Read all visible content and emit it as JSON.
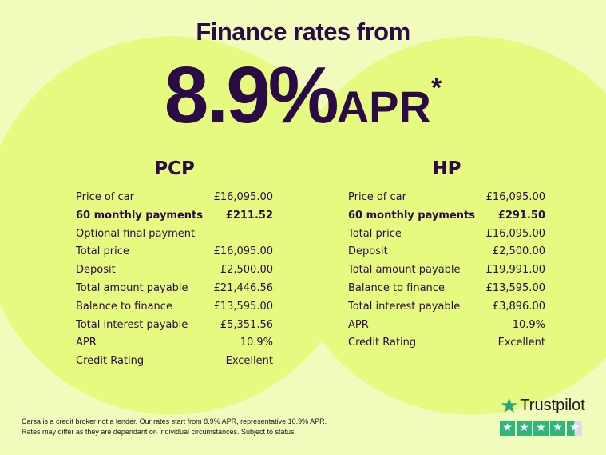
{
  "header": {
    "title": "Finance rates from",
    "rate": "8.9%",
    "apr": "APR",
    "asterisk": "*"
  },
  "pcp": {
    "title": "PCP",
    "rows": [
      {
        "label": "Price of car",
        "value": "£16,095.00"
      },
      {
        "label": "60 monthly payments",
        "value": "£211.52",
        "bold": true
      },
      {
        "label": "Optional final payment",
        "value": ""
      },
      {
        "label": "Total price",
        "value": "£16,095.00"
      },
      {
        "label": "Deposit",
        "value": "£2,500.00"
      },
      {
        "label": "Total amount payable",
        "value": "£21,446.56"
      },
      {
        "label": "Balance to finance",
        "value": "£13,595.00"
      },
      {
        "label": "Total interest payable",
        "value": "£5,351.56"
      },
      {
        "label": "APR",
        "value": "10.9%"
      },
      {
        "label": "Credit Rating",
        "value": "Excellent"
      }
    ]
  },
  "hp": {
    "title": "HP",
    "rows": [
      {
        "label": "Price of car",
        "value": "£16,095.00"
      },
      {
        "label": "60 monthly payments",
        "value": "£291.50",
        "bold": true
      },
      {
        "label": "Total price",
        "value": "£16,095.00"
      },
      {
        "label": "Deposit",
        "value": "£2,500.00"
      },
      {
        "label": "Total amount payable",
        "value": "£19,991.00"
      },
      {
        "label": "Balance to finance",
        "value": "£13,595.00"
      },
      {
        "label": "Total interest payable",
        "value": "£3,896.00"
      },
      {
        "label": "APR",
        "value": "10.9%"
      },
      {
        "label": "Credit Rating",
        "value": "Excellent"
      }
    ]
  },
  "disclaimer": {
    "line1": "Carsa is a credit broker not a lender. Our rates start from 8.9% APR, representative 10.9% APR.",
    "line2": "Rates may differ as they are dependant on individual circumstances. Subject to status."
  },
  "trustpilot": {
    "name": "Trustpilot",
    "rating_stars": 4.5,
    "icon": "star-icon"
  },
  "colors": {
    "text": "#2a0b45",
    "background": "#f0fbbc",
    "circle": "#e5fa7f",
    "trustpilot": "#2fb67c"
  }
}
